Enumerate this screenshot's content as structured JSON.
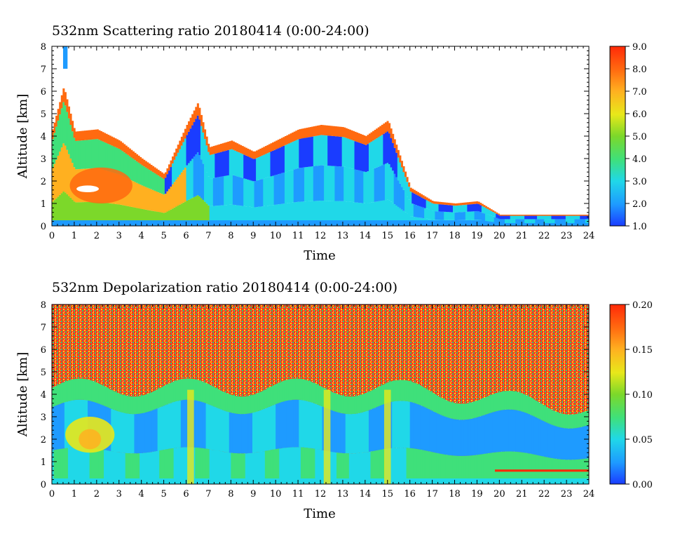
{
  "chart_data": [
    {
      "type": "heatmap",
      "title": "532nm Scattering ratio  20180414 (0:00-24:00)",
      "xlabel": "Time",
      "ylabel": "Altitude [km]",
      "xlim": [
        0,
        24
      ],
      "ylim": [
        0,
        8
      ],
      "xticks": [
        "0",
        "1",
        "2",
        "3",
        "4",
        "5",
        "6",
        "7",
        "8",
        "9",
        "10",
        "11",
        "12",
        "13",
        "14",
        "15",
        "16",
        "17",
        "18",
        "19",
        "20",
        "21",
        "22",
        "23",
        "24"
      ],
      "yticks": [
        "0",
        "1",
        "2",
        "3",
        "4",
        "5",
        "6",
        "7",
        "8"
      ],
      "colorbar": {
        "range": [
          1.0,
          9.0
        ],
        "ticks": [
          "1.0",
          "2.0",
          "3.0",
          "4.0",
          "5.0",
          "6.0",
          "7.0",
          "8.0",
          "9.0"
        ],
        "colors": [
          "#1a3cff",
          "#1e9bff",
          "#20d8e8",
          "#3fe07a",
          "#7cd82a",
          "#e8e81a",
          "#ffb020",
          "#ff6a10",
          "#ff2a08"
        ]
      },
      "grid": false,
      "cloud_top_km": [
        {
          "x": 0.0,
          "y": 4.3
        },
        {
          "x": 0.5,
          "y": 6.2
        },
        {
          "x": 1.0,
          "y": 4.2
        },
        {
          "x": 2.0,
          "y": 4.3
        },
        {
          "x": 3.0,
          "y": 3.8
        },
        {
          "x": 4.0,
          "y": 3.0
        },
        {
          "x": 5.0,
          "y": 2.3
        },
        {
          "x": 6.0,
          "y": 4.5
        },
        {
          "x": 6.5,
          "y": 5.5
        },
        {
          "x": 7.0,
          "y": 3.5
        },
        {
          "x": 8.0,
          "y": 3.8
        },
        {
          "x": 9.0,
          "y": 3.3
        },
        {
          "x": 10.0,
          "y": 3.8
        },
        {
          "x": 11.0,
          "y": 4.3
        },
        {
          "x": 12.0,
          "y": 4.5
        },
        {
          "x": 13.0,
          "y": 4.4
        },
        {
          "x": 14.0,
          "y": 4.0
        },
        {
          "x": 15.0,
          "y": 4.7
        },
        {
          "x": 16.0,
          "y": 1.7
        },
        {
          "x": 17.0,
          "y": 1.1
        },
        {
          "x": 18.0,
          "y": 1.0
        },
        {
          "x": 19.0,
          "y": 1.1
        },
        {
          "x": 20.0,
          "y": 0.5
        },
        {
          "x": 22.0,
          "y": 0.5
        },
        {
          "x": 24.0,
          "y": 0.5
        }
      ]
    },
    {
      "type": "heatmap",
      "title": "532nm Depolarization ratio  20180414 (0:00-24:00)",
      "xlabel": "Time",
      "ylabel": "Altitude [km]",
      "xlim": [
        0,
        24
      ],
      "ylim": [
        0,
        8
      ],
      "xticks": [
        "0",
        "1",
        "2",
        "3",
        "4",
        "5",
        "6",
        "7",
        "8",
        "9",
        "10",
        "11",
        "12",
        "13",
        "14",
        "15",
        "16",
        "17",
        "18",
        "19",
        "20",
        "21",
        "22",
        "23",
        "24"
      ],
      "yticks": [
        "0",
        "1",
        "2",
        "3",
        "4",
        "5",
        "6",
        "7",
        "8"
      ],
      "colorbar": {
        "range": [
          0.0,
          0.2
        ],
        "ticks": [
          "0.00",
          "0.05",
          "0.10",
          "0.15",
          "0.20"
        ],
        "colors": [
          "#1a3cff",
          "#1e9bff",
          "#20d8e8",
          "#3fe07a",
          "#7cd82a",
          "#e8e81a",
          "#ffb020",
          "#ff6a10",
          "#ff2a08"
        ]
      },
      "grid": false
    }
  ]
}
